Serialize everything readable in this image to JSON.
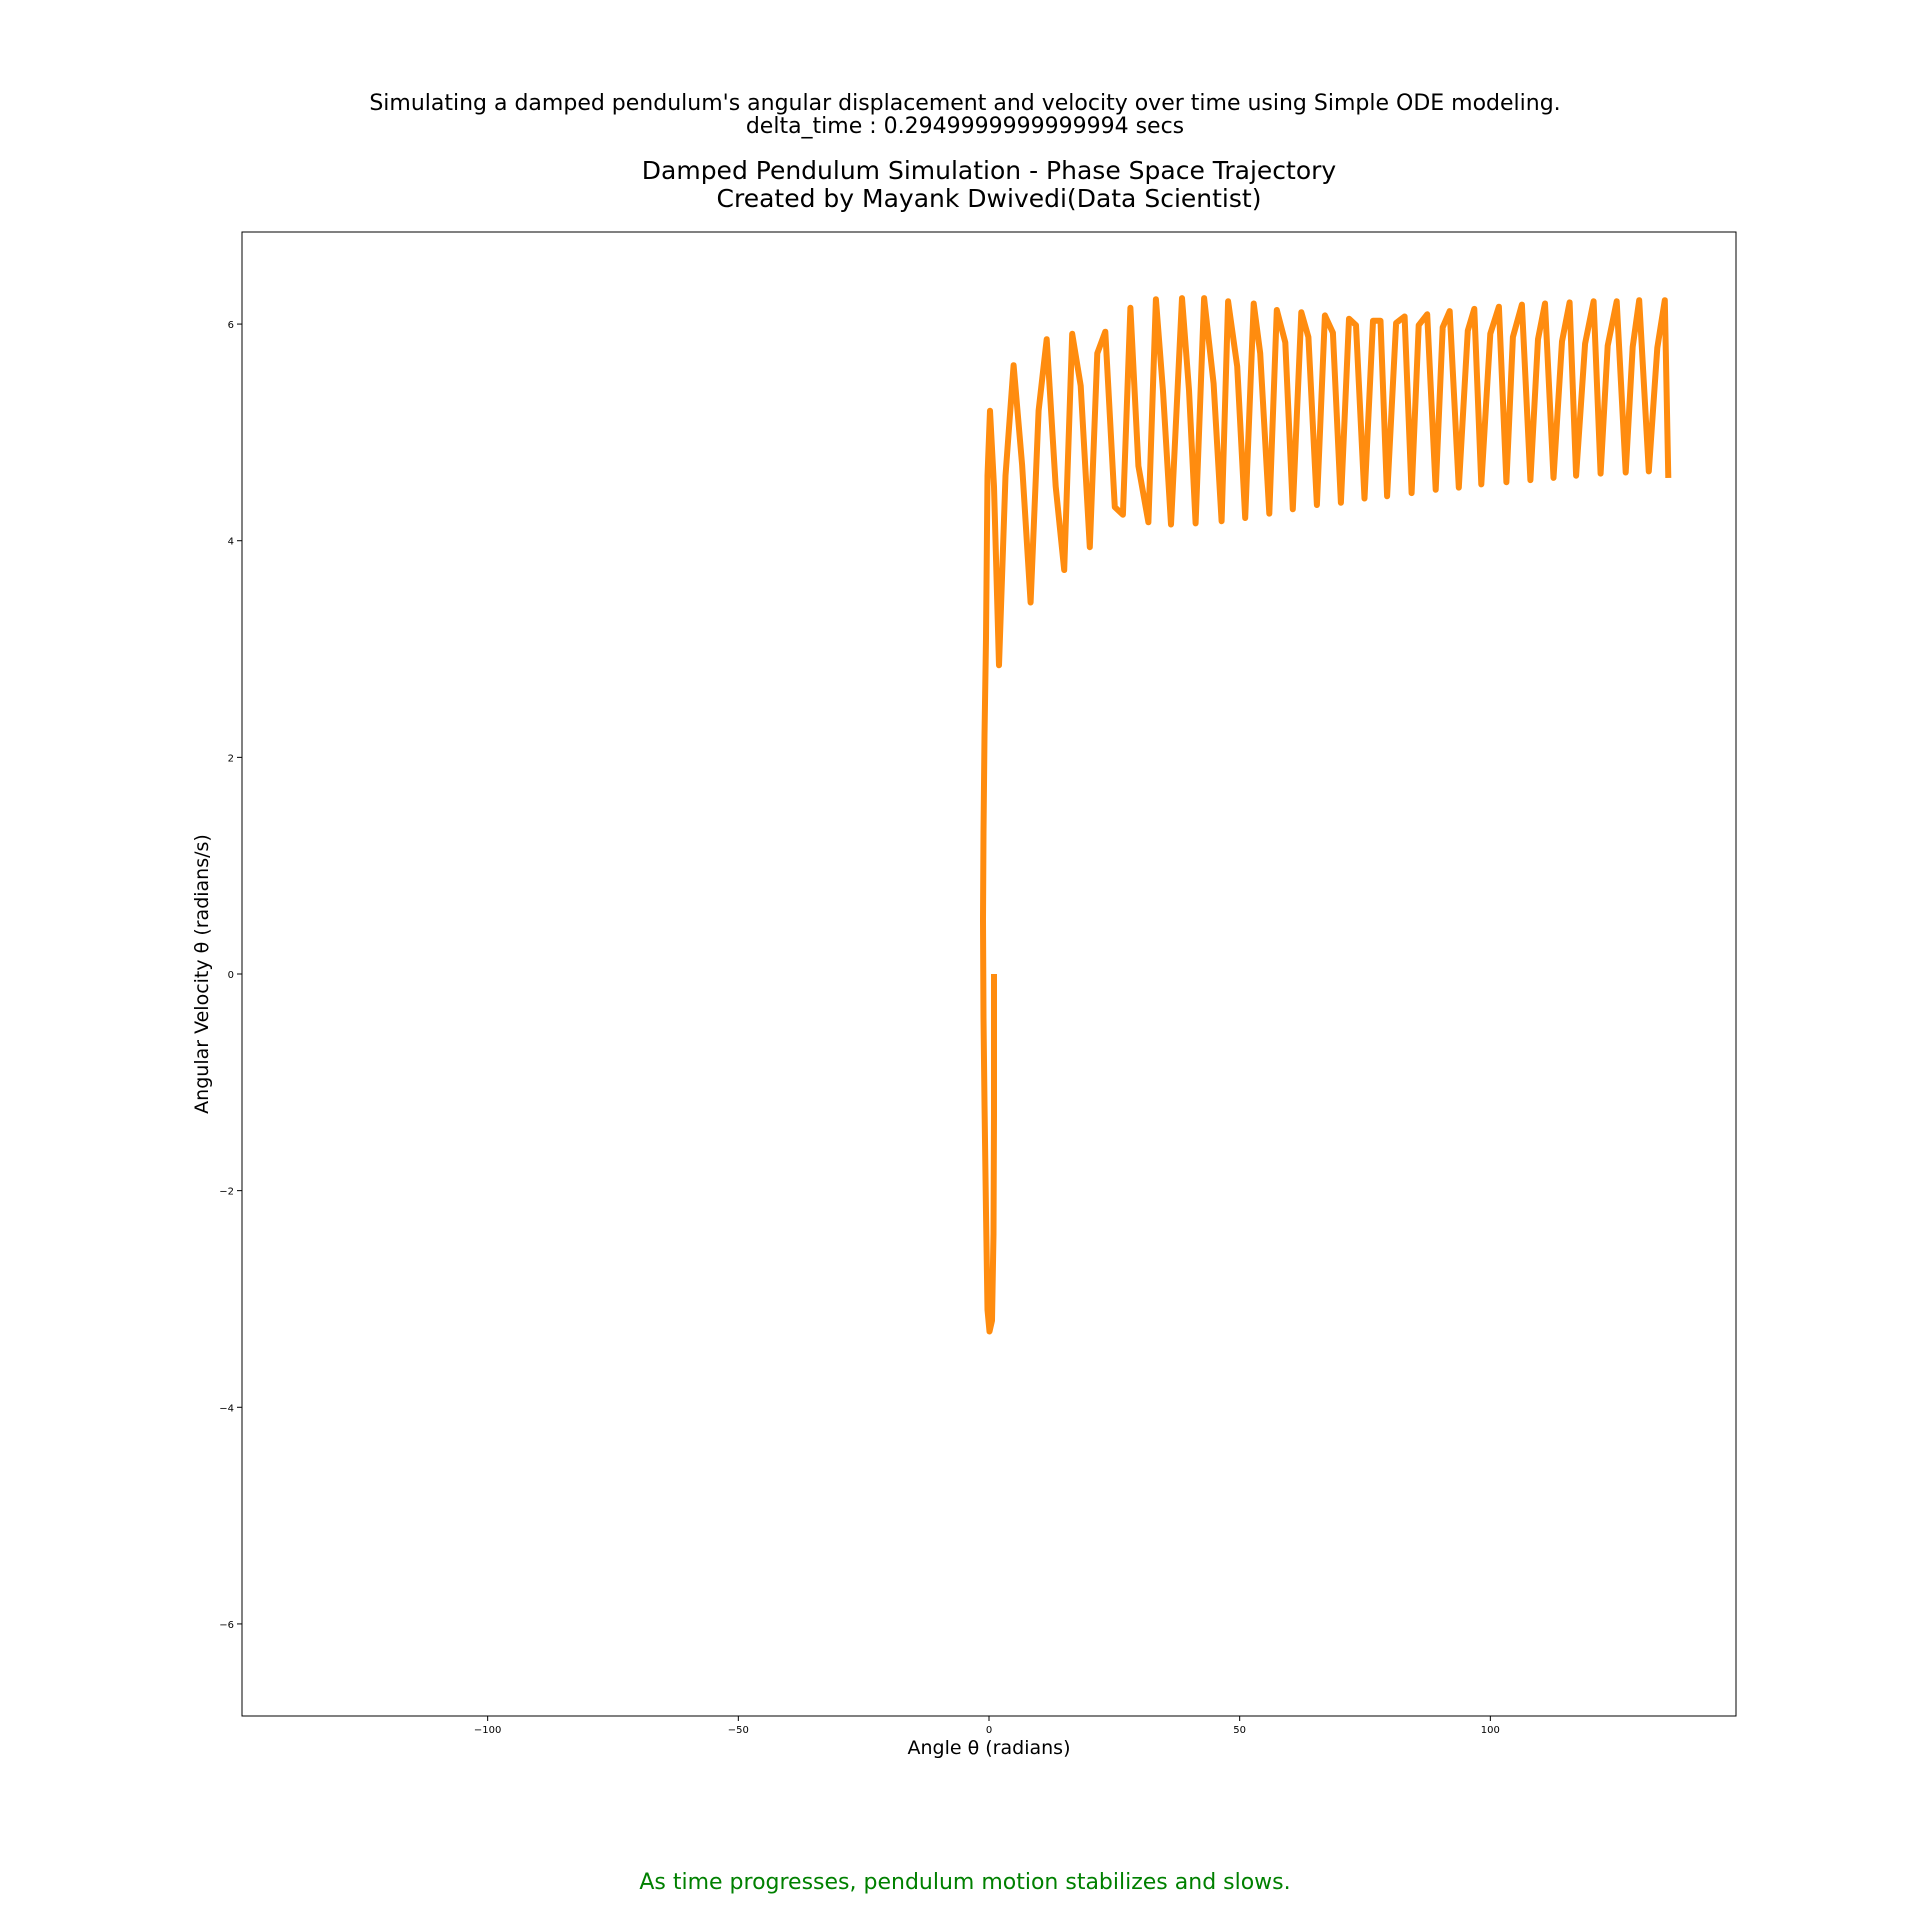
{
  "header": {
    "line1": "Simulating a damped pendulum's angular displacement and velocity over time using Simple ODE modeling.",
    "line2": "delta_time : 0.2949999999999994 secs"
  },
  "footer": {
    "note": "As time progresses, pendulum motion stabilizes and slows."
  },
  "chart_data": {
    "type": "line",
    "title": "Damped Pendulum Simulation - Phase Space Trajectory",
    "subtitle": "Created by Mayank Dwivedi(Data Scientist)",
    "xlabel": "Angle θ (radians)",
    "ylabel": "Angular Velocity θ (radians/s)",
    "xlim": [
      -149,
      149
    ],
    "ylim": [
      -6.85,
      6.85
    ],
    "xticks": [
      -100,
      -50,
      0,
      50,
      100
    ],
    "xtick_labels": [
      "−100",
      "−50",
      "0",
      "50",
      "100"
    ],
    "yticks": [
      -6,
      -4,
      -2,
      0,
      2,
      4,
      6
    ],
    "ytick_labels": [
      "−6",
      "−4",
      "−2",
      "0",
      "2",
      "4",
      "6"
    ],
    "grid": false,
    "line_color": "#ff8c0f",
    "series": [
      {
        "x": [
          1.0,
          1.0,
          0.9,
          0.6,
          0.1,
          -0.3,
          -0.6,
          -0.9,
          -1.1,
          -1.2,
          -1.1,
          -0.9,
          -0.6,
          -0.3,
          0.2,
          1.0,
          2.0,
          3.3,
          4.9,
          6.6,
          8.3,
          9.9,
          11.5,
          13.3,
          15.0,
          16.6,
          18.3,
          20.1,
          21.6,
          23.2,
          25.1,
          26.7,
          28.2,
          29.8,
          31.8,
          33.3,
          34.7,
          36.3,
          38.5,
          39.9,
          41.2,
          42.9,
          44.8,
          46.4,
          47.7,
          49.5,
          51.1,
          52.8,
          54.1,
          55.9,
          57.4,
          59.1,
          60.6,
          62.3,
          63.7,
          65.4,
          67.0,
          68.6,
          70.2,
          71.8,
          73.2,
          74.9,
          76.6,
          78.1,
          79.4,
          81.2,
          82.9,
          84.3,
          85.7,
          87.4,
          89.1,
          90.5,
          91.9,
          93.7,
          95.5,
          96.8,
          98.2,
          100.0,
          101.7,
          103.2,
          104.5,
          106.3,
          108.0,
          109.5,
          110.9,
          112.6,
          114.3,
          115.8,
          117.1,
          118.9,
          120.6,
          122.0,
          123.4,
          125.2,
          127.0,
          128.4,
          129.7,
          131.6,
          133.3,
          134.8,
          135.5
        ],
        "y": [
          0.0,
          -1.3,
          -2.4,
          -3.2,
          -3.3,
          -3.1,
          -2.2,
          -1.2,
          -0.4,
          0.5,
          1.3,
          2.2,
          3.1,
          4.6,
          5.2,
          4.5,
          2.85,
          4.6,
          5.62,
          4.7,
          3.43,
          5.2,
          5.86,
          4.5,
          3.73,
          5.91,
          5.43,
          3.94,
          5.73,
          5.93,
          4.31,
          4.24,
          6.15,
          4.69,
          4.17,
          6.23,
          5.38,
          4.15,
          6.24,
          5.39,
          4.16,
          6.24,
          5.45,
          4.18,
          6.21,
          5.61,
          4.21,
          6.19,
          5.73,
          4.25,
          6.13,
          5.83,
          4.29,
          6.11,
          5.88,
          4.33,
          6.08,
          5.92,
          4.35,
          6.05,
          5.99,
          4.39,
          6.03,
          6.03,
          4.41,
          6.01,
          6.07,
          4.44,
          5.99,
          6.09,
          4.47,
          5.97,
          6.12,
          4.49,
          5.94,
          6.14,
          4.52,
          5.91,
          6.16,
          4.54,
          5.88,
          6.18,
          4.56,
          5.86,
          6.19,
          4.58,
          5.84,
          6.2,
          4.6,
          5.82,
          6.21,
          4.62,
          5.8,
          6.21,
          4.63,
          5.79,
          6.22,
          4.64,
          5.78,
          6.22,
          4.58
        ]
      }
    ]
  }
}
